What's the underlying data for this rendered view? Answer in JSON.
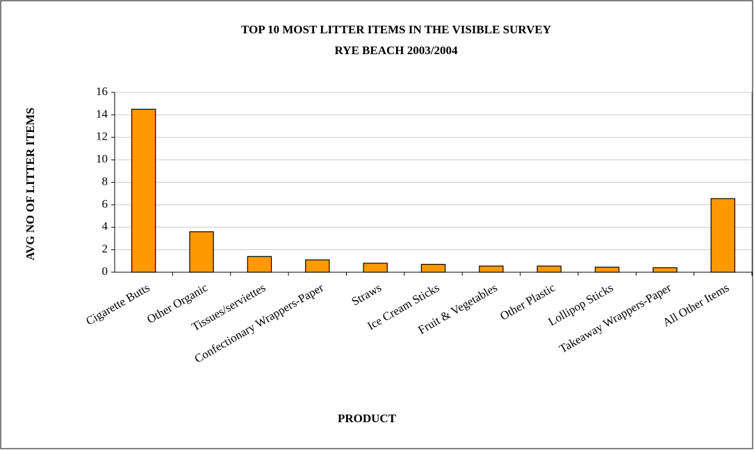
{
  "chart_data": {
    "type": "bar",
    "title": "TOP 10 MOST LITTER ITEMS IN THE VISIBLE SURVEY",
    "subtitle": "RYE BEACH 2003/2004",
    "x_label": "PRODUCT",
    "y_label": "AVG NO OF LITTER ITEMS",
    "categories": [
      "Cigarette Butts",
      "Other Organic",
      "Tissues/serviettes",
      "Confectionary Wrappers-Paper",
      "Straws",
      "Ice Cream Sticks",
      "Fruit & Vegetables",
      "Other Plastic",
      "Lollipop Sticks",
      "Takeaway Wrappers-Paper",
      "All Other Items"
    ],
    "values": [
      14.5,
      3.6,
      1.4,
      1.1,
      0.8,
      0.7,
      0.55,
      0.55,
      0.45,
      0.4,
      6.55
    ],
    "color": "#ff9900",
    "ylim": [
      0,
      16
    ],
    "yticks": [
      0,
      2,
      4,
      6,
      8,
      10,
      12,
      14,
      16
    ],
    "grid": true
  }
}
